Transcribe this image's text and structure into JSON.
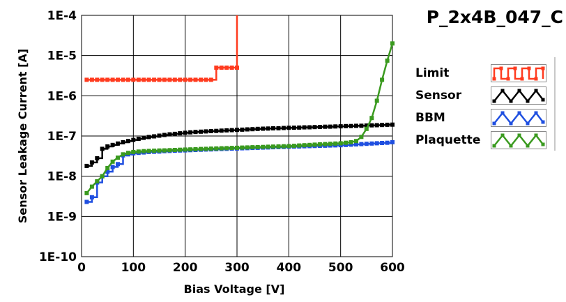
{
  "chart_data": {
    "type": "line",
    "title": "P_2x4B_047_C",
    "xlabel": "Bias Voltage [V]",
    "ylabel": "Sensor Leakage Current [A]",
    "xlim": [
      0,
      600
    ],
    "ylim": [
      1e-10,
      0.0001
    ],
    "yscale": "log",
    "grid": true,
    "legend_position": "right",
    "x_ticks": [
      0,
      100,
      200,
      300,
      400,
      500,
      600
    ],
    "x_tick_labels": [
      "0",
      "100",
      "200",
      "300",
      "400",
      "500",
      "600"
    ],
    "y_ticks": [
      1e-10,
      1e-09,
      1e-08,
      1e-07,
      1e-06,
      1e-05,
      0.0001
    ],
    "y_tick_labels": [
      "1E-10",
      "1E-9",
      "1E-8",
      "1E-7",
      "1E-6",
      "1E-5",
      "1E-4"
    ],
    "series": [
      {
        "name": "Limit",
        "color": "#ff3b1f",
        "step": true,
        "x": [
          10,
          20,
          30,
          40,
          50,
          60,
          70,
          80,
          90,
          100,
          110,
          120,
          130,
          140,
          150,
          160,
          170,
          180,
          190,
          200,
          210,
          220,
          230,
          240,
          250,
          260,
          270,
          280,
          290,
          300,
          300
        ],
        "y": [
          2.5e-06,
          2.5e-06,
          2.5e-06,
          2.5e-06,
          2.5e-06,
          2.5e-06,
          2.5e-06,
          2.5e-06,
          2.5e-06,
          2.5e-06,
          2.5e-06,
          2.5e-06,
          2.5e-06,
          2.5e-06,
          2.5e-06,
          2.5e-06,
          2.5e-06,
          2.5e-06,
          2.5e-06,
          2.5e-06,
          2.5e-06,
          2.5e-06,
          2.5e-06,
          2.5e-06,
          2.5e-06,
          5e-06,
          5e-06,
          5e-06,
          5e-06,
          5e-06,
          0.0001
        ]
      },
      {
        "name": "Sensor",
        "color": "#000000",
        "step": true,
        "x": [
          10,
          20,
          30,
          40,
          50,
          60,
          70,
          80,
          90,
          100,
          110,
          120,
          130,
          140,
          150,
          160,
          170,
          180,
          190,
          200,
          210,
          220,
          230,
          240,
          250,
          260,
          270,
          280,
          290,
          300,
          310,
          320,
          330,
          340,
          350,
          360,
          370,
          380,
          390,
          400,
          410,
          420,
          430,
          440,
          450,
          460,
          470,
          480,
          490,
          500,
          510,
          520,
          530,
          540,
          550,
          560,
          570,
          580,
          590,
          600
        ],
        "y": [
          1.8e-08,
          2.2e-08,
          2.8e-08,
          4.8e-08,
          5.5e-08,
          6e-08,
          6.5e-08,
          7e-08,
          7.5e-08,
          8e-08,
          8.5e-08,
          9e-08,
          9.4e-08,
          9.8e-08,
          1.02e-07,
          1.06e-07,
          1.1e-07,
          1.13e-07,
          1.17e-07,
          1.2e-07,
          1.23e-07,
          1.26e-07,
          1.28e-07,
          1.3e-07,
          1.32e-07,
          1.34e-07,
          1.36e-07,
          1.38e-07,
          1.4e-07,
          1.42e-07,
          1.44e-07,
          1.46e-07,
          1.48e-07,
          1.5e-07,
          1.52e-07,
          1.53e-07,
          1.55e-07,
          1.56e-07,
          1.58e-07,
          1.6e-07,
          1.61e-07,
          1.62e-07,
          1.64e-07,
          1.65e-07,
          1.67e-07,
          1.68e-07,
          1.7e-07,
          1.71e-07,
          1.73e-07,
          1.74e-07,
          1.76e-07,
          1.77e-07,
          1.79e-07,
          1.8e-07,
          1.82e-07,
          1.84e-07,
          1.86e-07,
          1.88e-07,
          1.9e-07,
          1.92e-07
        ]
      },
      {
        "name": "BBM",
        "color": "#1f4fe0",
        "step": true,
        "x": [
          10,
          20,
          30,
          40,
          50,
          60,
          70,
          80,
          90,
          100,
          110,
          120,
          130,
          140,
          150,
          160,
          170,
          180,
          190,
          200,
          210,
          220,
          230,
          240,
          250,
          260,
          270,
          280,
          290,
          300,
          310,
          320,
          330,
          340,
          350,
          360,
          370,
          380,
          390,
          400,
          410,
          420,
          430,
          440,
          450,
          460,
          470,
          480,
          490,
          500,
          510,
          520,
          530,
          540,
          550,
          560,
          570,
          580,
          590,
          600
        ],
        "y": [
          2.3e-09,
          3e-09,
          7e-09,
          1e-08,
          1.3e-08,
          1.7e-08,
          2e-08,
          3.3e-08,
          3.5e-08,
          3.7e-08,
          3.8e-08,
          3.9e-08,
          4e-08,
          4.05e-08,
          4.1e-08,
          4.2e-08,
          4.25e-08,
          4.3e-08,
          4.35e-08,
          4.4e-08,
          4.45e-08,
          4.5e-08,
          4.55e-08,
          4.6e-08,
          4.65e-08,
          4.7e-08,
          4.75e-08,
          4.8e-08,
          4.85e-08,
          4.9e-08,
          4.95e-08,
          5e-08,
          5.05e-08,
          5.1e-08,
          5.15e-08,
          5.2e-08,
          5.25e-08,
          5.3e-08,
          5.35e-08,
          5.4e-08,
          5.45e-08,
          5.5e-08,
          5.55e-08,
          5.6e-08,
          5.65e-08,
          5.7e-08,
          5.75e-08,
          5.8e-08,
          5.85e-08,
          5.9e-08,
          6e-08,
          6.1e-08,
          6.2e-08,
          6.3e-08,
          6.4e-08,
          6.5e-08,
          6.6e-08,
          6.7e-08,
          6.8e-08,
          7e-08
        ]
      },
      {
        "name": "Plaquette",
        "color": "#3a9a1f",
        "step": false,
        "x": [
          10,
          20,
          30,
          40,
          50,
          60,
          70,
          80,
          90,
          100,
          110,
          120,
          130,
          140,
          150,
          160,
          170,
          180,
          190,
          200,
          210,
          220,
          230,
          240,
          250,
          260,
          270,
          280,
          290,
          300,
          310,
          320,
          330,
          340,
          350,
          360,
          370,
          380,
          390,
          400,
          410,
          420,
          430,
          440,
          450,
          460,
          470,
          480,
          490,
          500,
          510,
          520,
          530,
          540,
          550,
          560,
          570,
          580,
          590,
          600
        ],
        "y": [
          3.8e-09,
          5.5e-09,
          7.5e-09,
          1e-08,
          1.6e-08,
          2.3e-08,
          2.9e-08,
          3.5e-08,
          3.8e-08,
          4e-08,
          4.1e-08,
          4.2e-08,
          4.25e-08,
          4.3e-08,
          4.35e-08,
          4.4e-08,
          4.45e-08,
          4.5e-08,
          4.55e-08,
          4.6e-08,
          4.65e-08,
          4.7e-08,
          4.75e-08,
          4.8e-08,
          4.85e-08,
          4.9e-08,
          4.95e-08,
          5e-08,
          5.05e-08,
          5.1e-08,
          5.15e-08,
          5.2e-08,
          5.25e-08,
          5.3e-08,
          5.35e-08,
          5.4e-08,
          5.45e-08,
          5.5e-08,
          5.55e-08,
          5.6e-08,
          5.7e-08,
          5.8e-08,
          5.9e-08,
          6e-08,
          6.1e-08,
          6.2e-08,
          6.3e-08,
          6.4e-08,
          6.5e-08,
          6.6e-08,
          6.8e-08,
          7e-08,
          7.5e-08,
          9.5e-08,
          1.5e-07,
          2.8e-07,
          7.5e-07,
          2.5e-06,
          7.5e-06,
          2e-05
        ]
      }
    ]
  }
}
